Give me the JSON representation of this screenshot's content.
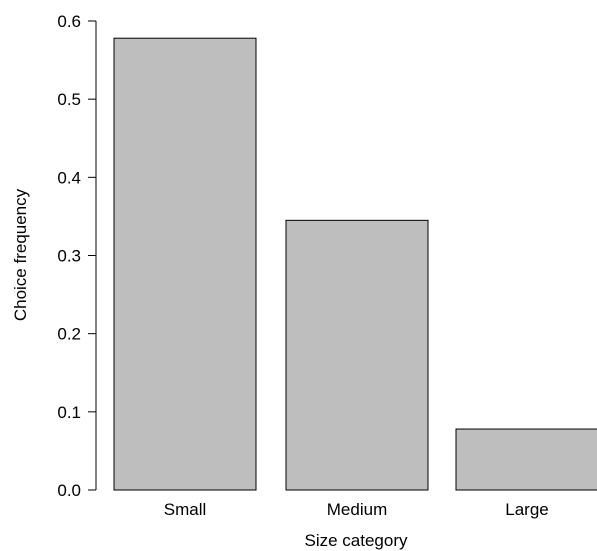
{
  "chart_data": {
    "type": "bar",
    "title": "",
    "xlabel": "Size category",
    "ylabel": "Choice frequency",
    "categories": [
      "Small",
      "Medium",
      "Large"
    ],
    "values": [
      0.578,
      0.345,
      0.078
    ],
    "ylim": [
      0.0,
      0.6
    ],
    "yticks": [
      0.0,
      0.1,
      0.2,
      0.3,
      0.4,
      0.5,
      0.6
    ],
    "ytick_labels": [
      "0.0",
      "0.1",
      "0.2",
      "0.3",
      "0.4",
      "0.5",
      "0.6"
    ],
    "grid": false,
    "legend": "none",
    "colors": {
      "bar_fill": "#bebebe",
      "bar_stroke": "#000000",
      "axis": "#000000"
    }
  }
}
